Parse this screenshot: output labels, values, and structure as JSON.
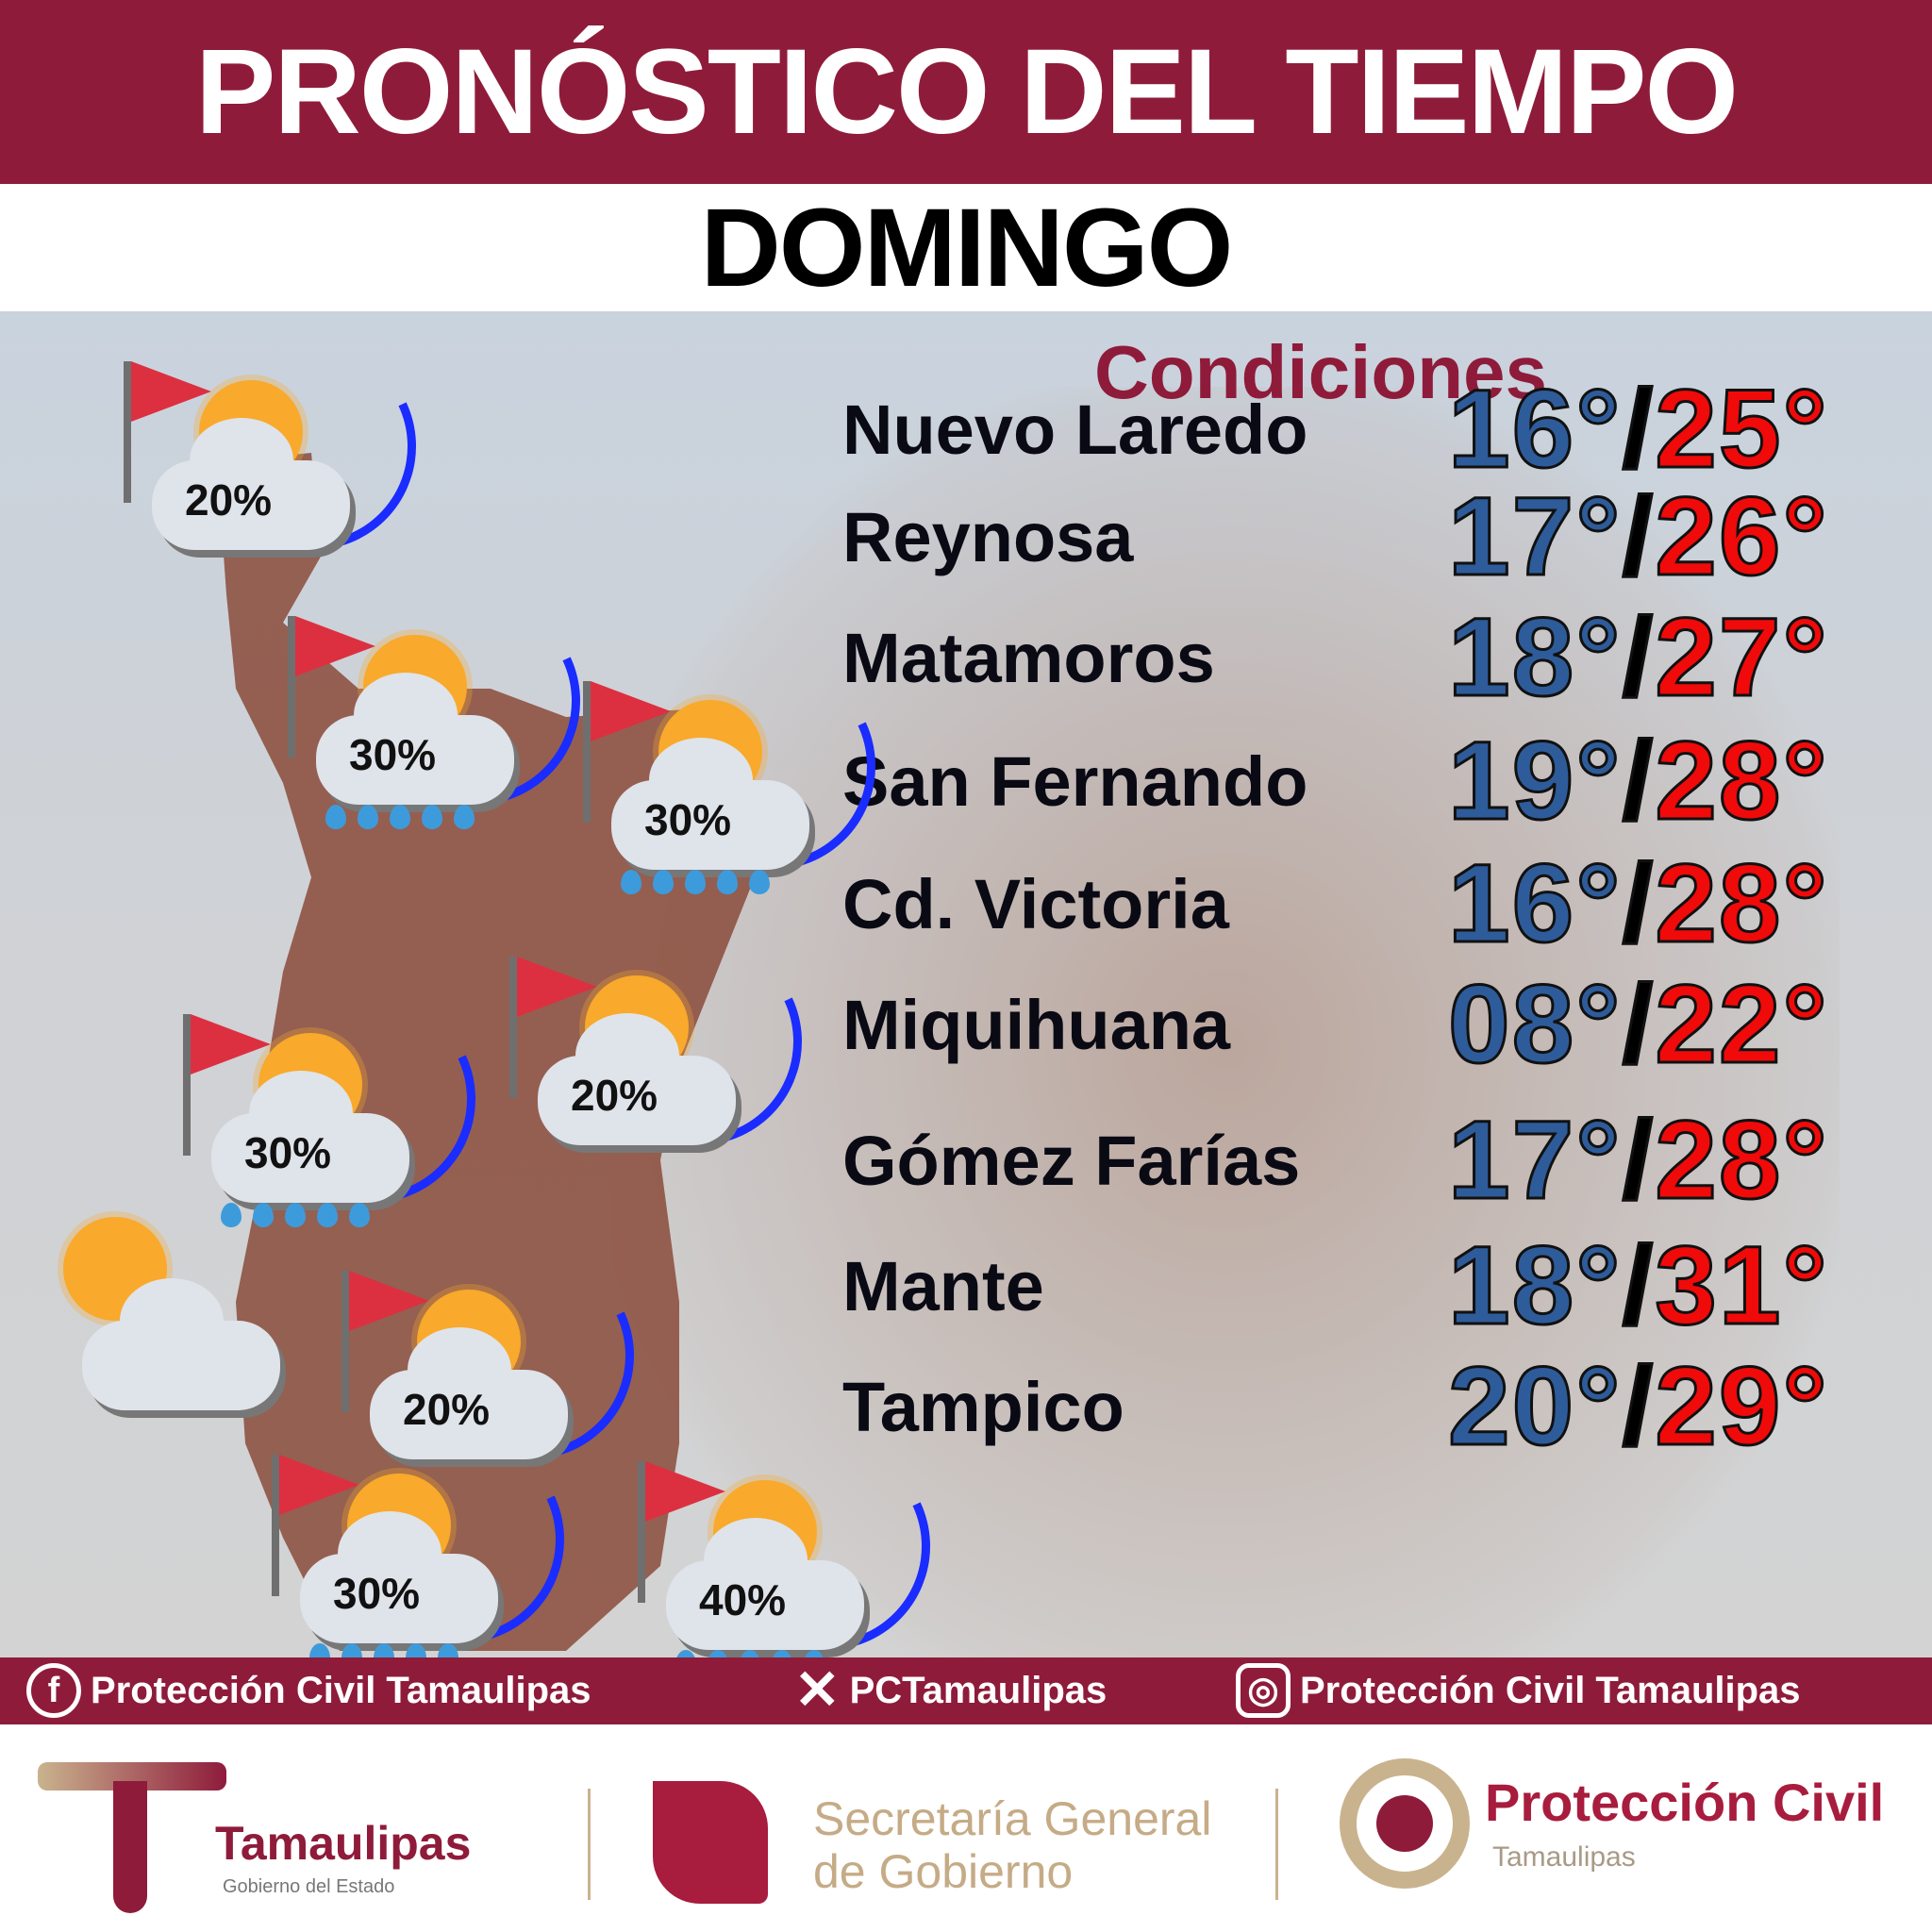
{
  "header": {
    "title": "PRONÓSTICO DEL TIEMPO",
    "day": "DOMINGO"
  },
  "conditions_label": "Condiciones",
  "cities": [
    {
      "name": "Nuevo Laredo",
      "min": "16°",
      "max": "25°"
    },
    {
      "name": "Reynosa",
      "min": "17°",
      "max": "26°"
    },
    {
      "name": "Matamoros",
      "min": "18°",
      "max": "27°"
    },
    {
      "name": "San Fernando",
      "min": "19°",
      "max": "28°"
    },
    {
      "name": "Cd. Victoria",
      "min": "16°",
      "max": "28°"
    },
    {
      "name": "Miquihuana",
      "min": "08°",
      "max": "22°"
    },
    {
      "name": "Gómez Farías",
      "min": "17°",
      "max": "28°"
    },
    {
      "name": "Mante",
      "min": "18°",
      "max": "31°"
    },
    {
      "name": "Tampico",
      "min": "20°",
      "max": "29°"
    }
  ],
  "separator": "/",
  "map_icons": [
    {
      "pct": "20%",
      "icon": "sun-cloud-flag-front",
      "rain": false
    },
    {
      "pct": "30%",
      "icon": "sun-cloud-rain-flag-front",
      "rain": true
    },
    {
      "pct": "30%",
      "icon": "sun-cloud-rain-flag-front",
      "rain": true
    },
    {
      "pct": "20%",
      "icon": "sun-cloud-flag-front",
      "rain": false
    },
    {
      "pct": "30%",
      "icon": "sun-cloud-rain-flag-front",
      "rain": true
    },
    {
      "pct": "",
      "icon": "sun-cloud",
      "rain": false
    },
    {
      "pct": "20%",
      "icon": "sun-cloud-flag-front",
      "rain": false
    },
    {
      "pct": "30%",
      "icon": "sun-cloud-rain-flag-front",
      "rain": true
    },
    {
      "pct": "40%",
      "icon": "sun-cloud-rain-flag-front",
      "rain": true
    }
  ],
  "social": {
    "facebook": "Protección Civil Tamaulipas",
    "x": "PCTamaulipas",
    "instagram": "Protección Civil Tamaulipas"
  },
  "logos": {
    "tamaulipas": "Tamaulipas",
    "tamaulipas_sub": "Gobierno del Estado",
    "sgg_line1": "Secretaría General",
    "sgg_line2": "de Gobierno",
    "pc": "Protección Civil",
    "pc_sub": "Tamaulipas"
  },
  "colors": {
    "brand": "#8f1b3b",
    "min_temp": "#2e5c9a",
    "max_temp": "#f00a0a",
    "front": "#1a2cff"
  }
}
